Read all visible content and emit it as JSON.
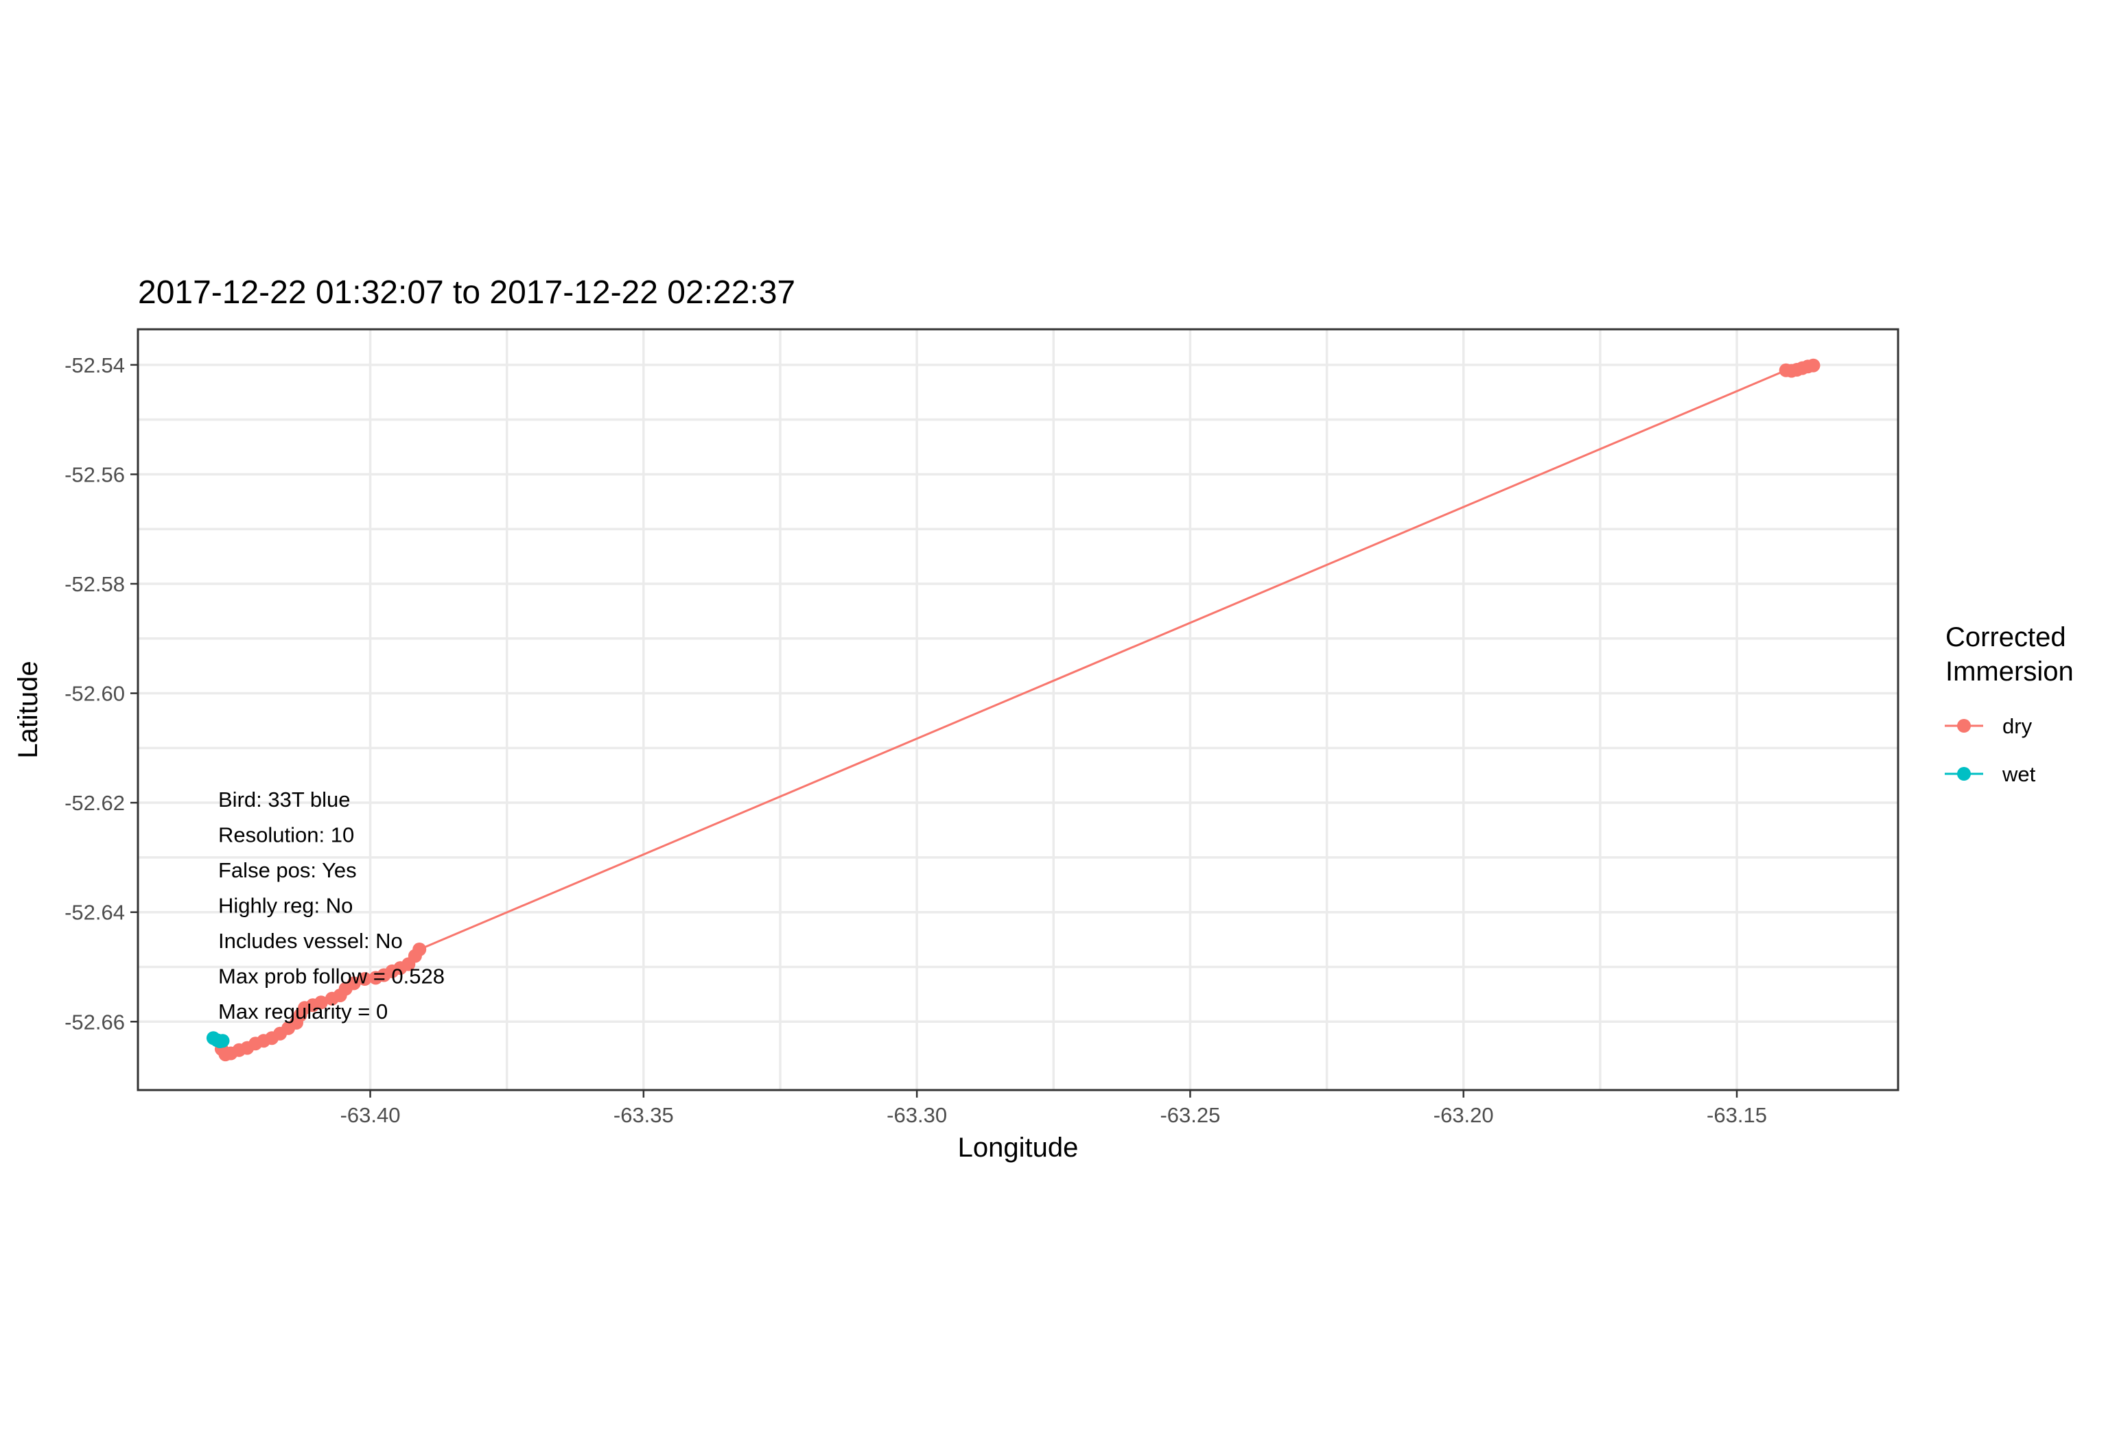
{
  "chart_data": {
    "type": "line",
    "title": "2017-12-22 01:32:07 to 2017-12-22 02:22:37",
    "xlabel": "Longitude",
    "ylabel": "Latitude",
    "xlim": [
      -63.4425,
      -63.1205
    ],
    "ylim": [
      -52.6725,
      -52.5335
    ],
    "x_ticks": [
      -63.4,
      -63.35,
      -63.3,
      -63.25,
      -63.2,
      -63.15
    ],
    "x_tick_labels": [
      "-63.40",
      "-63.35",
      "-63.30",
      "-63.25",
      "-63.20",
      "-63.15"
    ],
    "y_ticks": [
      -52.54,
      -52.56,
      -52.58,
      -52.6,
      -52.62,
      -52.64,
      -52.66
    ],
    "y_tick_labels": [
      "-52.54",
      "-52.56",
      "-52.58",
      "-52.60",
      "-52.62",
      "-52.64",
      "-52.66"
    ],
    "grid": true,
    "legend": {
      "title_lines": [
        "Corrected",
        "Immersion"
      ],
      "placement": "right"
    },
    "series": [
      {
        "name": "dry",
        "color": "#F8766D",
        "points": [
          [
            -63.4277,
            -52.6635
          ],
          [
            -63.4272,
            -52.665
          ],
          [
            -63.4265,
            -52.666
          ],
          [
            -63.4255,
            -52.6658
          ],
          [
            -63.424,
            -52.6652
          ],
          [
            -63.4225,
            -52.6648
          ],
          [
            -63.421,
            -52.664
          ],
          [
            -63.4195,
            -52.6635
          ],
          [
            -63.418,
            -52.663
          ],
          [
            -63.4165,
            -52.6622
          ],
          [
            -63.415,
            -52.6612
          ],
          [
            -63.4135,
            -52.6602
          ],
          [
            -63.4128,
            -52.6588
          ],
          [
            -63.412,
            -52.6575
          ],
          [
            -63.4105,
            -52.657
          ],
          [
            -63.409,
            -52.6565
          ],
          [
            -63.407,
            -52.6558
          ],
          [
            -63.4055,
            -52.6552
          ],
          [
            -63.4045,
            -52.654
          ],
          [
            -63.403,
            -52.653
          ],
          [
            -63.401,
            -52.6522
          ],
          [
            -63.399,
            -52.652
          ],
          [
            -63.3975,
            -52.6515
          ],
          [
            -63.396,
            -52.6508
          ],
          [
            -63.3945,
            -52.6502
          ],
          [
            -63.393,
            -52.6495
          ],
          [
            -63.3918,
            -52.648
          ],
          [
            -63.391,
            -52.6468
          ],
          [
            -63.141,
            -52.541
          ],
          [
            -63.14,
            -52.5411
          ],
          [
            -63.139,
            -52.5409
          ],
          [
            -63.138,
            -52.5406
          ],
          [
            -63.137,
            -52.5403
          ],
          [
            -63.136,
            -52.5401
          ]
        ]
      },
      {
        "name": "wet",
        "color": "#00BFC4",
        "points": [
          [
            -63.4287,
            -52.663
          ],
          [
            -63.428,
            -52.6634
          ],
          [
            -63.4275,
            -52.6636
          ],
          [
            -63.427,
            -52.6635
          ]
        ]
      }
    ],
    "annotations": [
      "Bird: 33T blue",
      "Resolution: 10",
      "False pos: Yes",
      "Highly reg: No",
      "Includes vessel: No",
      "Max prob follow = 0.528",
      "Max regularity = 0"
    ]
  }
}
